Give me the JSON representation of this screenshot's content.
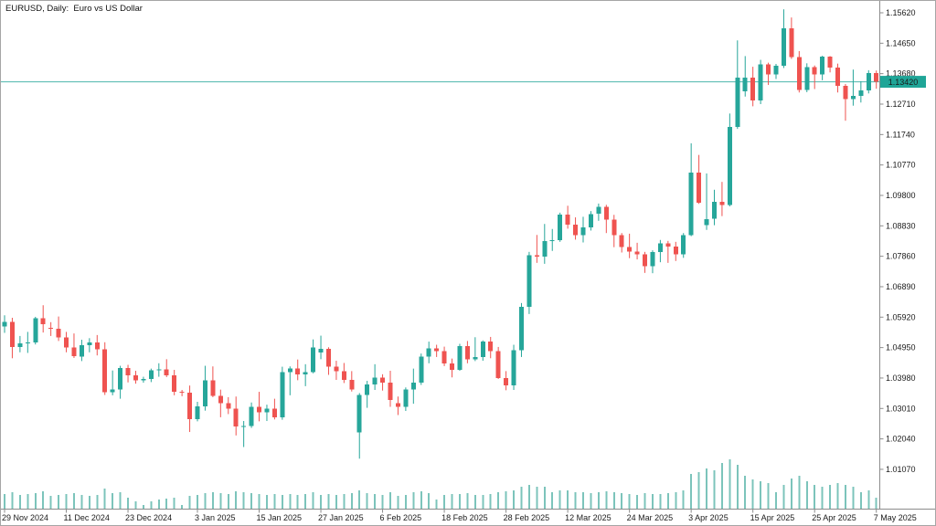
{
  "window": {
    "title": "EURUSD, Daily:  Euro vs US Dollar"
  },
  "current_price": {
    "value": "1.13420"
  },
  "colors": {
    "background": "#ffffff",
    "up_candle": "#26a69a",
    "down_candle": "#ef5350",
    "volume_bar": "#7cc4bb",
    "price_line": "#4db6ac",
    "price_badge_bg": "#1fa597",
    "price_badge_text": "#ffffff",
    "axis_line": "#8c8c8c",
    "axis_text": "#1a1a1a"
  },
  "y_axis": {
    "labels": [
      "1.15620",
      "1.14650",
      "1.13680",
      "1.12710",
      "1.11740",
      "1.10770",
      "1.09800",
      "1.08830",
      "1.07860",
      "1.06890",
      "1.05920",
      "1.04950",
      "1.03980",
      "1.03010",
      "1.02040",
      "1.01070"
    ]
  },
  "x_axis": {
    "labels": [
      {
        "label": "29 Nov 2024",
        "date": "2024-11-29"
      },
      {
        "label": "11 Dec 2024",
        "date": "2024-12-11"
      },
      {
        "label": "23 Dec 2024",
        "date": "2024-12-23"
      },
      {
        "label": "3 Jan 2025",
        "date": "2025-01-03"
      },
      {
        "label": "15 Jan 2025",
        "date": "2025-01-15"
      },
      {
        "label": "27 Jan 2025",
        "date": "2025-01-27"
      },
      {
        "label": "6 Feb 2025",
        "date": "2025-02-06"
      },
      {
        "label": "18 Feb 2025",
        "date": "2025-02-18"
      },
      {
        "label": "28 Feb 2025",
        "date": "2025-02-28"
      },
      {
        "label": "12 Mar 2025",
        "date": "2025-03-12"
      },
      {
        "label": "24 Mar 2025",
        "date": "2025-03-24"
      },
      {
        "label": "3 Apr 2025",
        "date": "2025-04-03"
      },
      {
        "label": "15 Apr 2025",
        "date": "2025-04-15"
      },
      {
        "label": "25 Apr 2025",
        "date": "2025-04-25"
      },
      {
        "label": "7 May 2025",
        "date": "2025-05-07"
      }
    ]
  },
  "chart_data": {
    "type": "candlestick",
    "symbol": "EURUSD",
    "timeframe": "Daily",
    "description": "Euro vs US Dollar",
    "ylim": [
      1.005,
      1.16
    ],
    "current_price": 1.1342,
    "candles": [
      {
        "date": "2024-11-29",
        "o": 1.0562,
        "h": 1.0598,
        "l": 1.0542,
        "c": 1.0577,
        "v": 16
      },
      {
        "date": "2024-12-02",
        "o": 1.0577,
        "h": 1.059,
        "l": 1.0461,
        "c": 1.0497,
        "v": 18
      },
      {
        "date": "2024-12-03",
        "o": 1.0497,
        "h": 1.0532,
        "l": 1.048,
        "c": 1.0509,
        "v": 15
      },
      {
        "date": "2024-12-04",
        "o": 1.0509,
        "h": 1.0545,
        "l": 1.0478,
        "c": 1.0512,
        "v": 16
      },
      {
        "date": "2024-12-05",
        "o": 1.0512,
        "h": 1.0593,
        "l": 1.0505,
        "c": 1.0588,
        "v": 17
      },
      {
        "date": "2024-12-06",
        "o": 1.0588,
        "h": 1.063,
        "l": 1.0543,
        "c": 1.057,
        "v": 19
      },
      {
        "date": "2024-12-09",
        "o": 1.0558,
        "h": 1.0576,
        "l": 1.0532,
        "c": 1.0555,
        "v": 14
      },
      {
        "date": "2024-12-10",
        "o": 1.0555,
        "h": 1.0594,
        "l": 1.0516,
        "c": 1.0528,
        "v": 15
      },
      {
        "date": "2024-12-11",
        "o": 1.0528,
        "h": 1.0545,
        "l": 1.048,
        "c": 1.0496,
        "v": 16
      },
      {
        "date": "2024-12-12",
        "o": 1.0496,
        "h": 1.054,
        "l": 1.0462,
        "c": 1.0467,
        "v": 17
      },
      {
        "date": "2024-12-13",
        "o": 1.0467,
        "h": 1.052,
        "l": 1.0452,
        "c": 1.0502,
        "v": 15
      },
      {
        "date": "2024-12-16",
        "o": 1.0502,
        "h": 1.0525,
        "l": 1.048,
        "c": 1.0511,
        "v": 14
      },
      {
        "date": "2024-12-17",
        "o": 1.0511,
        "h": 1.0535,
        "l": 1.047,
        "c": 1.049,
        "v": 15
      },
      {
        "date": "2024-12-18",
        "o": 1.049,
        "h": 1.0512,
        "l": 1.0344,
        "c": 1.0353,
        "v": 22
      },
      {
        "date": "2024-12-19",
        "o": 1.0353,
        "h": 1.0422,
        "l": 1.0343,
        "c": 1.0362,
        "v": 17
      },
      {
        "date": "2024-12-20",
        "o": 1.0362,
        "h": 1.0437,
        "l": 1.0332,
        "c": 1.043,
        "v": 18
      },
      {
        "date": "2024-12-23",
        "o": 1.043,
        "h": 1.044,
        "l": 1.0384,
        "c": 1.0406,
        "v": 12
      },
      {
        "date": "2024-12-24",
        "o": 1.0406,
        "h": 1.0421,
        "l": 1.038,
        "c": 1.039,
        "v": 8
      },
      {
        "date": "2024-12-25",
        "o": 1.039,
        "h": 1.0402,
        "l": 1.0383,
        "c": 1.0395,
        "v": 4
      },
      {
        "date": "2024-12-26",
        "o": 1.0395,
        "h": 1.0428,
        "l": 1.0385,
        "c": 1.0422,
        "v": 8
      },
      {
        "date": "2024-12-27",
        "o": 1.0422,
        "h": 1.0445,
        "l": 1.0402,
        "c": 1.0426,
        "v": 10
      },
      {
        "date": "2024-12-30",
        "o": 1.0426,
        "h": 1.0458,
        "l": 1.0401,
        "c": 1.0406,
        "v": 11
      },
      {
        "date": "2024-12-31",
        "o": 1.0406,
        "h": 1.0424,
        "l": 1.0343,
        "c": 1.0354,
        "v": 12
      },
      {
        "date": "2025-01-01",
        "o": 1.0354,
        "h": 1.036,
        "l": 1.034,
        "c": 1.0352,
        "v": 4
      },
      {
        "date": "2025-01-02",
        "o": 1.0352,
        "h": 1.0374,
        "l": 1.0226,
        "c": 1.0267,
        "v": 14
      },
      {
        "date": "2025-01-03",
        "o": 1.0267,
        "h": 1.0322,
        "l": 1.026,
        "c": 1.0308,
        "v": 15
      },
      {
        "date": "2025-01-06",
        "o": 1.0308,
        "h": 1.0437,
        "l": 1.0294,
        "c": 1.0391,
        "v": 17
      },
      {
        "date": "2025-01-07",
        "o": 1.0391,
        "h": 1.0435,
        "l": 1.0337,
        "c": 1.0341,
        "v": 18
      },
      {
        "date": "2025-01-08",
        "o": 1.0341,
        "h": 1.0361,
        "l": 1.0273,
        "c": 1.0318,
        "v": 17
      },
      {
        "date": "2025-01-09",
        "o": 1.0318,
        "h": 1.0337,
        "l": 1.0283,
        "c": 1.03,
        "v": 16
      },
      {
        "date": "2025-01-10",
        "o": 1.03,
        "h": 1.0339,
        "l": 1.0215,
        "c": 1.0244,
        "v": 19
      },
      {
        "date": "2025-01-13",
        "o": 1.0244,
        "h": 1.0261,
        "l": 1.0178,
        "c": 1.0245,
        "v": 18
      },
      {
        "date": "2025-01-14",
        "o": 1.0245,
        "h": 1.032,
        "l": 1.0239,
        "c": 1.0306,
        "v": 17
      },
      {
        "date": "2025-01-15",
        "o": 1.0306,
        "h": 1.0354,
        "l": 1.026,
        "c": 1.0289,
        "v": 16
      },
      {
        "date": "2025-01-16",
        "o": 1.0289,
        "h": 1.0313,
        "l": 1.0261,
        "c": 1.0301,
        "v": 15
      },
      {
        "date": "2025-01-17",
        "o": 1.0301,
        "h": 1.0332,
        "l": 1.0266,
        "c": 1.0273,
        "v": 16
      },
      {
        "date": "2025-01-20",
        "o": 1.0273,
        "h": 1.0434,
        "l": 1.0265,
        "c": 1.0417,
        "v": 15
      },
      {
        "date": "2025-01-21",
        "o": 1.0417,
        "h": 1.0435,
        "l": 1.0343,
        "c": 1.0428,
        "v": 16
      },
      {
        "date": "2025-01-22",
        "o": 1.0428,
        "h": 1.0457,
        "l": 1.0391,
        "c": 1.041,
        "v": 15
      },
      {
        "date": "2025-01-23",
        "o": 1.041,
        "h": 1.0442,
        "l": 1.0372,
        "c": 1.0417,
        "v": 16
      },
      {
        "date": "2025-01-24",
        "o": 1.0417,
        "h": 1.0521,
        "l": 1.0413,
        "c": 1.0495,
        "v": 18
      },
      {
        "date": "2025-01-27",
        "o": 1.048,
        "h": 1.0533,
        "l": 1.0458,
        "c": 1.0491,
        "v": 15
      },
      {
        "date": "2025-01-28",
        "o": 1.0491,
        "h": 1.0496,
        "l": 1.0408,
        "c": 1.0434,
        "v": 16
      },
      {
        "date": "2025-01-29",
        "o": 1.0434,
        "h": 1.0453,
        "l": 1.0392,
        "c": 1.042,
        "v": 15
      },
      {
        "date": "2025-01-30",
        "o": 1.042,
        "h": 1.0446,
        "l": 1.0382,
        "c": 1.0392,
        "v": 16
      },
      {
        "date": "2025-01-31",
        "o": 1.0392,
        "h": 1.042,
        "l": 1.0355,
        "c": 1.0362,
        "v": 17
      },
      {
        "date": "2025-02-03",
        "o": 1.0224,
        "h": 1.035,
        "l": 1.0141,
        "c": 1.0344,
        "v": 20
      },
      {
        "date": "2025-02-04",
        "o": 1.0344,
        "h": 1.0389,
        "l": 1.0303,
        "c": 1.0378,
        "v": 17
      },
      {
        "date": "2025-02-05",
        "o": 1.0378,
        "h": 1.0442,
        "l": 1.036,
        "c": 1.04,
        "v": 16
      },
      {
        "date": "2025-02-06",
        "o": 1.04,
        "h": 1.041,
        "l": 1.0358,
        "c": 1.0384,
        "v": 15
      },
      {
        "date": "2025-02-07",
        "o": 1.0384,
        "h": 1.0421,
        "l": 1.0306,
        "c": 1.0328,
        "v": 18
      },
      {
        "date": "2025-02-10",
        "o": 1.0318,
        "h": 1.0339,
        "l": 1.028,
        "c": 1.0306,
        "v": 14
      },
      {
        "date": "2025-02-11",
        "o": 1.0306,
        "h": 1.0368,
        "l": 1.0293,
        "c": 1.0361,
        "v": 15
      },
      {
        "date": "2025-02-12",
        "o": 1.0361,
        "h": 1.0428,
        "l": 1.0316,
        "c": 1.0383,
        "v": 18
      },
      {
        "date": "2025-02-13",
        "o": 1.0383,
        "h": 1.0476,
        "l": 1.0376,
        "c": 1.0466,
        "v": 19
      },
      {
        "date": "2025-02-14",
        "o": 1.0466,
        "h": 1.0514,
        "l": 1.0445,
        "c": 1.0492,
        "v": 17
      },
      {
        "date": "2025-02-17",
        "o": 1.0492,
        "h": 1.0504,
        "l": 1.0465,
        "c": 1.0484,
        "v": 10
      },
      {
        "date": "2025-02-18",
        "o": 1.0484,
        "h": 1.0498,
        "l": 1.0436,
        "c": 1.0445,
        "v": 15
      },
      {
        "date": "2025-02-19",
        "o": 1.0445,
        "h": 1.046,
        "l": 1.04,
        "c": 1.0424,
        "v": 16
      },
      {
        "date": "2025-02-20",
        "o": 1.0424,
        "h": 1.0507,
        "l": 1.0421,
        "c": 1.05,
        "v": 16
      },
      {
        "date": "2025-02-21",
        "o": 1.05,
        "h": 1.0516,
        "l": 1.0445,
        "c": 1.0457,
        "v": 17
      },
      {
        "date": "2025-02-24",
        "o": 1.0457,
        "h": 1.0528,
        "l": 1.0452,
        "c": 1.0465,
        "v": 15
      },
      {
        "date": "2025-02-25",
        "o": 1.0465,
        "h": 1.0518,
        "l": 1.0453,
        "c": 1.0514,
        "v": 15
      },
      {
        "date": "2025-02-26",
        "o": 1.0514,
        "h": 1.0529,
        "l": 1.0461,
        "c": 1.0484,
        "v": 16
      },
      {
        "date": "2025-02-27",
        "o": 1.0484,
        "h": 1.0497,
        "l": 1.0395,
        "c": 1.0398,
        "v": 18
      },
      {
        "date": "2025-02-28",
        "o": 1.0398,
        "h": 1.042,
        "l": 1.0359,
        "c": 1.0375,
        "v": 19
      },
      {
        "date": "2025-03-03",
        "o": 1.0375,
        "h": 1.0504,
        "l": 1.036,
        "c": 1.0486,
        "v": 20
      },
      {
        "date": "2025-03-04",
        "o": 1.0486,
        "h": 1.0637,
        "l": 1.0465,
        "c": 1.0625,
        "v": 24
      },
      {
        "date": "2025-03-05",
        "o": 1.0625,
        "h": 1.08,
        "l": 1.0602,
        "c": 1.0789,
        "v": 26
      },
      {
        "date": "2025-03-06",
        "o": 1.0789,
        "h": 1.0854,
        "l": 1.0765,
        "c": 1.0785,
        "v": 24
      },
      {
        "date": "2025-03-07",
        "o": 1.0785,
        "h": 1.0889,
        "l": 1.0762,
        "c": 1.0834,
        "v": 24
      },
      {
        "date": "2025-03-10",
        "o": 1.0834,
        "h": 1.0873,
        "l": 1.0803,
        "c": 1.0837,
        "v": 18
      },
      {
        "date": "2025-03-11",
        "o": 1.0837,
        "h": 1.0925,
        "l": 1.0832,
        "c": 1.0919,
        "v": 20
      },
      {
        "date": "2025-03-12",
        "o": 1.0919,
        "h": 1.0947,
        "l": 1.0874,
        "c": 1.0887,
        "v": 20
      },
      {
        "date": "2025-03-13",
        "o": 1.0887,
        "h": 1.091,
        "l": 1.0839,
        "c": 1.0854,
        "v": 18
      },
      {
        "date": "2025-03-14",
        "o": 1.0854,
        "h": 1.0912,
        "l": 1.083,
        "c": 1.0878,
        "v": 18
      },
      {
        "date": "2025-03-17",
        "o": 1.0878,
        "h": 1.093,
        "l": 1.0868,
        "c": 1.0921,
        "v": 17
      },
      {
        "date": "2025-03-18",
        "o": 1.0921,
        "h": 1.0954,
        "l": 1.0899,
        "c": 1.0944,
        "v": 18
      },
      {
        "date": "2025-03-19",
        "o": 1.0944,
        "h": 1.095,
        "l": 1.086,
        "c": 1.0903,
        "v": 19
      },
      {
        "date": "2025-03-20",
        "o": 1.0903,
        "h": 1.0918,
        "l": 1.0815,
        "c": 1.0854,
        "v": 18
      },
      {
        "date": "2025-03-21",
        "o": 1.0854,
        "h": 1.086,
        "l": 1.0798,
        "c": 1.0815,
        "v": 17
      },
      {
        "date": "2025-03-24",
        "o": 1.0815,
        "h": 1.0858,
        "l": 1.078,
        "c": 1.0801,
        "v": 16
      },
      {
        "date": "2025-03-25",
        "o": 1.0801,
        "h": 1.0829,
        "l": 1.0776,
        "c": 1.0792,
        "v": 15
      },
      {
        "date": "2025-03-26",
        "o": 1.0792,
        "h": 1.08,
        "l": 1.0733,
        "c": 1.0754,
        "v": 17
      },
      {
        "date": "2025-03-27",
        "o": 1.0754,
        "h": 1.0805,
        "l": 1.0732,
        "c": 1.08,
        "v": 16
      },
      {
        "date": "2025-03-28",
        "o": 1.08,
        "h": 1.0838,
        "l": 1.0767,
        "c": 1.0827,
        "v": 16
      },
      {
        "date": "2025-03-31",
        "o": 1.0827,
        "h": 1.0835,
        "l": 1.0765,
        "c": 1.0817,
        "v": 17
      },
      {
        "date": "2025-04-01",
        "o": 1.0817,
        "h": 1.0832,
        "l": 1.0771,
        "c": 1.0792,
        "v": 18
      },
      {
        "date": "2025-04-02",
        "o": 1.0792,
        "h": 1.086,
        "l": 1.0781,
        "c": 1.0854,
        "v": 20
      },
      {
        "date": "2025-04-03",
        "o": 1.0854,
        "h": 1.1146,
        "l": 1.085,
        "c": 1.1052,
        "v": 38
      },
      {
        "date": "2025-04-04",
        "o": 1.1052,
        "h": 1.1109,
        "l": 1.0953,
        "c": 1.0956,
        "v": 40
      },
      {
        "date": "2025-04-07",
        "o": 1.0885,
        "h": 1.105,
        "l": 1.087,
        "c": 1.0905,
        "v": 44
      },
      {
        "date": "2025-04-08",
        "o": 1.0905,
        "h": 1.0998,
        "l": 1.0885,
        "c": 1.0959,
        "v": 42
      },
      {
        "date": "2025-04-09",
        "o": 1.0959,
        "h": 1.1023,
        "l": 1.0914,
        "c": 1.0949,
        "v": 50
      },
      {
        "date": "2025-04-10",
        "o": 1.0949,
        "h": 1.1241,
        "l": 1.0945,
        "c": 1.1198,
        "v": 54
      },
      {
        "date": "2025-04-11",
        "o": 1.1198,
        "h": 1.1474,
        "l": 1.1192,
        "c": 1.1355,
        "v": 48
      },
      {
        "date": "2025-04-14",
        "o": 1.1312,
        "h": 1.1424,
        "l": 1.1295,
        "c": 1.1356,
        "v": 36
      },
      {
        "date": "2025-04-15",
        "o": 1.1356,
        "h": 1.139,
        "l": 1.1264,
        "c": 1.1283,
        "v": 32
      },
      {
        "date": "2025-04-16",
        "o": 1.1283,
        "h": 1.1412,
        "l": 1.1271,
        "c": 1.1398,
        "v": 30
      },
      {
        "date": "2025-04-17",
        "o": 1.1398,
        "h": 1.1403,
        "l": 1.1332,
        "c": 1.1366,
        "v": 28
      },
      {
        "date": "2025-04-18",
        "o": 1.1366,
        "h": 1.1399,
        "l": 1.1351,
        "c": 1.1393,
        "v": 18
      },
      {
        "date": "2025-04-21",
        "o": 1.1393,
        "h": 1.1573,
        "l": 1.1386,
        "c": 1.1512,
        "v": 26
      },
      {
        "date": "2025-04-22",
        "o": 1.1512,
        "h": 1.1547,
        "l": 1.1415,
        "c": 1.1421,
        "v": 33
      },
      {
        "date": "2025-04-23",
        "o": 1.1421,
        "h": 1.144,
        "l": 1.1308,
        "c": 1.1316,
        "v": 36
      },
      {
        "date": "2025-04-24",
        "o": 1.1316,
        "h": 1.1401,
        "l": 1.1309,
        "c": 1.1389,
        "v": 30
      },
      {
        "date": "2025-04-25",
        "o": 1.1389,
        "h": 1.1394,
        "l": 1.1319,
        "c": 1.1366,
        "v": 26
      },
      {
        "date": "2025-04-28",
        "o": 1.1366,
        "h": 1.1425,
        "l": 1.1347,
        "c": 1.1422,
        "v": 24
      },
      {
        "date": "2025-04-29",
        "o": 1.1422,
        "h": 1.1424,
        "l": 1.1372,
        "c": 1.1387,
        "v": 26
      },
      {
        "date": "2025-04-30",
        "o": 1.1387,
        "h": 1.14,
        "l": 1.1308,
        "c": 1.1329,
        "v": 28
      },
      {
        "date": "2025-05-01",
        "o": 1.1329,
        "h": 1.1335,
        "l": 1.1218,
        "c": 1.1287,
        "v": 26
      },
      {
        "date": "2025-05-02",
        "o": 1.1287,
        "h": 1.1381,
        "l": 1.1266,
        "c": 1.1297,
        "v": 24
      },
      {
        "date": "2025-05-05",
        "o": 1.1297,
        "h": 1.1344,
        "l": 1.1276,
        "c": 1.1315,
        "v": 18
      },
      {
        "date": "2025-05-06",
        "o": 1.1315,
        "h": 1.1379,
        "l": 1.1305,
        "c": 1.137,
        "v": 20
      },
      {
        "date": "2025-05-07",
        "o": 1.137,
        "h": 1.1378,
        "l": 1.132,
        "c": 1.1342,
        "v": 12
      }
    ]
  }
}
